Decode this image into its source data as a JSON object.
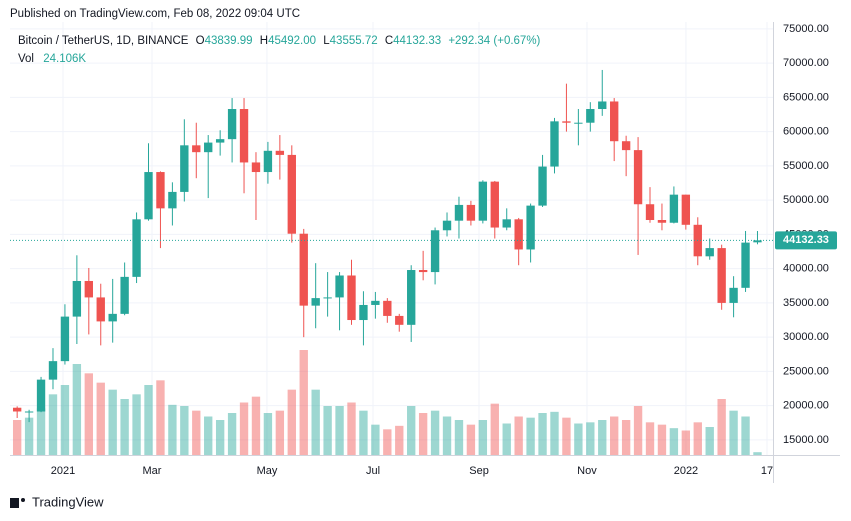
{
  "published": "Published on TradingView.com, Feb 08, 2022 09:04 UTC",
  "footer": "TradingView",
  "chart_data": {
    "type": "candlestick",
    "header": {
      "symbol": "Bitcoin / TetherUS, 1D, BINANCE",
      "o": "O",
      "open": "43839.99",
      "h": "H",
      "high": "45492.00",
      "l": "L",
      "low": "43555.72",
      "c": "C",
      "close": "44132.33",
      "change": "+292.34 (+0.67%)",
      "vol": "Vol",
      "vol_value": "24.106K"
    },
    "up_color": "#26a69a",
    "down_color": "#ef5350",
    "grid": true,
    "last_price": {
      "value": 44132.33,
      "label": "44132.33"
    },
    "xlim": [
      -0.6,
      63.3
    ],
    "xticks": [
      {
        "value": 3.84,
        "label": "2021"
      },
      {
        "value": 11.29,
        "label": "Mar"
      },
      {
        "value": 20.92,
        "label": "May"
      },
      {
        "value": 29.8,
        "label": "Jul"
      },
      {
        "value": 38.68,
        "label": "Sep"
      },
      {
        "value": 47.72,
        "label": "Nov"
      },
      {
        "value": 56.01,
        "label": "2022"
      },
      {
        "value": 62.8,
        "label": "17"
      }
    ],
    "ylim": [
      12800,
      76000
    ],
    "yticks": [
      {
        "value": 15000,
        "label": "15000.00"
      },
      {
        "value": 20000,
        "label": "20000.00"
      },
      {
        "value": 25000,
        "label": "25000.00"
      },
      {
        "value": 30000,
        "label": "30000.00"
      },
      {
        "value": 35000,
        "label": "35000.00"
      },
      {
        "value": 40000,
        "label": "40000.00"
      },
      {
        "value": 45000,
        "label": "45000.00"
      },
      {
        "value": 50000,
        "label": "50000.00"
      },
      {
        "value": 55000,
        "label": "55000.00"
      },
      {
        "value": 60000,
        "label": "60000.00"
      },
      {
        "value": 65000,
        "label": "65000.00"
      },
      {
        "value": 70000,
        "label": "70000.00"
      },
      {
        "value": 75000,
        "label": "75000.00"
      }
    ],
    "x": [
      0,
      1,
      2,
      3,
      4,
      5,
      6,
      7,
      8,
      9,
      10,
      11,
      12,
      13,
      14,
      15,
      16,
      17,
      18,
      19,
      20,
      21,
      22,
      23,
      24,
      25,
      26,
      27,
      28,
      29,
      30,
      31,
      32,
      33,
      34,
      35,
      36,
      37,
      38,
      39,
      40,
      41,
      42,
      43,
      44,
      45,
      46,
      47,
      48,
      49,
      50,
      51,
      52,
      53,
      54,
      55,
      56,
      57,
      58,
      59,
      60,
      61,
      62
    ],
    "ohlc": [
      [
        19700,
        19900,
        18200,
        19150
      ],
      [
        19150,
        19400,
        17600,
        19150
      ],
      [
        19150,
        24200,
        19050,
        23800
      ],
      [
        23800,
        28400,
        22400,
        26500
      ],
      [
        26500,
        34800,
        26000,
        33000
      ],
      [
        33000,
        41950,
        29000,
        38200
      ],
      [
        38200,
        40100,
        30400,
        35800
      ],
      [
        35800,
        37800,
        28800,
        32300
      ],
      [
        32300,
        38500,
        29200,
        33400
      ],
      [
        33400,
        40900,
        33200,
        38800
      ],
      [
        38800,
        48200,
        37900,
        47200
      ],
      [
        47200,
        58300,
        47000,
        54100
      ],
      [
        54100,
        54200,
        43000,
        48800
      ],
      [
        48800,
        52600,
        46300,
        51200
      ],
      [
        51200,
        61800,
        49800,
        58000
      ],
      [
        58000,
        61300,
        53200,
        57000
      ],
      [
        57000,
        59500,
        50300,
        58400
      ],
      [
        58400,
        60200,
        56500,
        58900
      ],
      [
        58900,
        64900,
        55500,
        63300
      ],
      [
        63300,
        64900,
        51000,
        55500
      ],
      [
        55500,
        57000,
        47100,
        54100
      ],
      [
        54100,
        58500,
        52400,
        57200
      ],
      [
        57200,
        59500,
        53000,
        56600
      ],
      [
        56600,
        58000,
        43800,
        45100
      ],
      [
        45100,
        45800,
        30000,
        34600
      ],
      [
        34600,
        40800,
        31300,
        35700
      ],
      [
        35700,
        39500,
        33000,
        35800
      ],
      [
        35800,
        39500,
        31000,
        39000
      ],
      [
        39000,
        41300,
        31800,
        32500
      ],
      [
        32500,
        36700,
        28800,
        34700
      ],
      [
        34700,
        36600,
        32700,
        35300
      ],
      [
        35300,
        35700,
        32100,
        33100
      ],
      [
        33100,
        33400,
        30800,
        31800
      ],
      [
        31800,
        40500,
        29300,
        39800
      ],
      [
        39800,
        42600,
        38300,
        39500
      ],
      [
        39500,
        46000,
        37700,
        45600
      ],
      [
        45600,
        48200,
        44700,
        47000
      ],
      [
        47000,
        50500,
        44400,
        49300
      ],
      [
        49300,
        49900,
        46300,
        47000
      ],
      [
        47000,
        52900,
        46600,
        52700
      ],
      [
        52700,
        52800,
        44400,
        46000
      ],
      [
        46000,
        48800,
        45600,
        47200
      ],
      [
        47200,
        47400,
        40500,
        42800
      ],
      [
        42800,
        49500,
        40900,
        49200
      ],
      [
        49200,
        56600,
        49000,
        54900
      ],
      [
        54900,
        62000,
        53900,
        61500
      ],
      [
        61500,
        67000,
        60000,
        61300
      ],
      [
        61300,
        63300,
        58000,
        61300
      ],
      [
        61300,
        64300,
        60000,
        63300
      ],
      [
        63300,
        69000,
        62300,
        64400
      ],
      [
        64400,
        64900,
        55700,
        58600
      ],
      [
        58600,
        59400,
        53500,
        57300
      ],
      [
        57300,
        59200,
        42000,
        49400
      ],
      [
        49400,
        51900,
        46700,
        47100
      ],
      [
        47100,
        49500,
        45600,
        46700
      ],
      [
        46700,
        52000,
        46600,
        50800
      ],
      [
        50800,
        50800,
        45700,
        46400
      ],
      [
        46400,
        47500,
        40500,
        41800
      ],
      [
        41800,
        44400,
        41300,
        43000
      ],
      [
        43000,
        43500,
        34000,
        35000
      ],
      [
        35000,
        38900,
        32900,
        37200
      ],
      [
        37200,
        45500,
        36600,
        43800
      ],
      [
        43839.99,
        45492,
        43555.72,
        44132.33
      ]
    ],
    "volume": [
      300,
      320,
      400,
      520,
      600,
      780,
      700,
      620,
      560,
      480,
      520,
      600,
      640,
      430,
      420,
      380,
      330,
      300,
      360,
      450,
      500,
      360,
      380,
      560,
      900,
      560,
      420,
      420,
      450,
      380,
      260,
      220,
      250,
      420,
      360,
      380,
      330,
      300,
      260,
      300,
      440,
      270,
      330,
      320,
      360,
      370,
      320,
      270,
      280,
      300,
      330,
      300,
      420,
      280,
      260,
      230,
      210,
      280,
      240,
      480,
      380,
      330,
      24.106
    ]
  }
}
